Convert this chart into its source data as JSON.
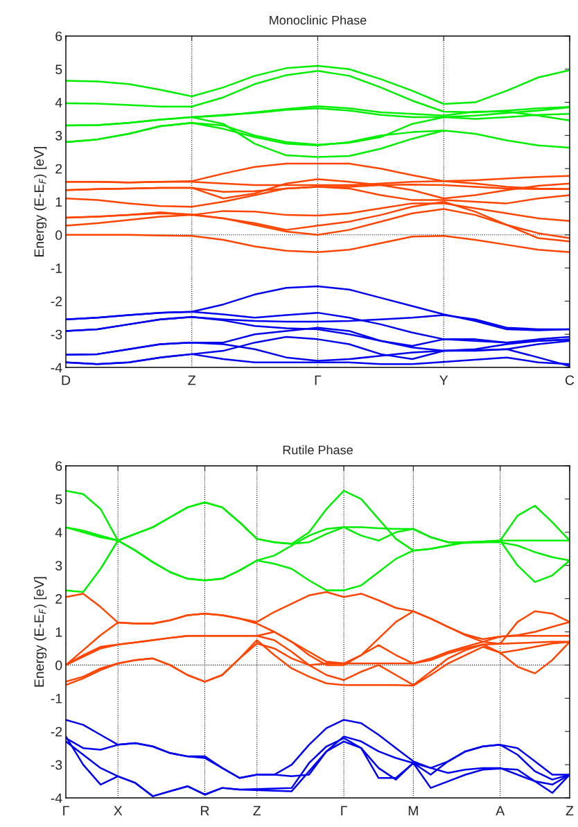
{
  "chart_data": [
    {
      "type": "line",
      "title": "Monoclinic Phase",
      "ylabel": "Energy (E-E$_{F}$) [eV]",
      "categories": [
        "D",
        null,
        null,
        null,
        "Z",
        null,
        null,
        null,
        "Γ",
        null,
        null,
        null,
        "Y",
        null,
        null,
        null,
        "C"
      ],
      "ylim": [
        -4,
        6
      ],
      "yticks": [
        -4,
        -3,
        -2,
        -1,
        0,
        1,
        2,
        3,
        4,
        5,
        6
      ],
      "grid": "x",
      "marker": "none",
      "line_style": "solid",
      "ref_lines": [
        {
          "axis": "y",
          "value": 0,
          "color": "#000000",
          "line_style": "dotted"
        }
      ],
      "series": [
        {
          "color": "#00ee00",
          "values": [
            4.65,
            4.63,
            4.55,
            4.38,
            4.18,
            4.45,
            4.8,
            5.03,
            5.1,
            5.0,
            4.7,
            4.35,
            3.95,
            4.0,
            4.35,
            4.75,
            4.97
          ]
        },
        {
          "color": "#00ee00",
          "values": [
            3.97,
            3.96,
            3.92,
            3.87,
            3.87,
            4.15,
            4.55,
            4.82,
            4.95,
            4.8,
            4.45,
            4.05,
            3.72,
            3.7,
            3.75,
            3.82,
            3.86
          ]
        },
        {
          "color": "#00ee00",
          "values": [
            3.3,
            3.31,
            3.38,
            3.48,
            3.55,
            3.6,
            3.7,
            3.8,
            3.88,
            3.82,
            3.7,
            3.65,
            3.6,
            3.72,
            3.72,
            3.6,
            3.45
          ]
        },
        {
          "color": "#00ee00",
          "values": [
            3.3,
            3.31,
            3.38,
            3.48,
            3.55,
            3.62,
            3.68,
            3.77,
            3.82,
            3.75,
            3.62,
            3.55,
            3.55,
            3.5,
            3.55,
            3.62,
            3.65
          ]
        },
        {
          "color": "#00ee00",
          "values": [
            2.8,
            2.88,
            3.05,
            3.28,
            3.38,
            3.2,
            2.95,
            2.75,
            2.7,
            2.8,
            3.0,
            3.1,
            3.15,
            3.05,
            2.85,
            2.7,
            2.63
          ]
        },
        {
          "color": "#00ee00",
          "values": [
            2.8,
            2.88,
            3.05,
            3.28,
            3.38,
            3.3,
            3.0,
            2.8,
            2.72,
            2.78,
            2.95,
            3.35,
            3.55,
            3.6,
            3.68,
            3.75,
            3.85
          ]
        },
        {
          "color": "#00ee00",
          "values": [
            null,
            null,
            null,
            null,
            3.55,
            3.35,
            2.75,
            2.4,
            2.35,
            2.38,
            2.6,
            2.9,
            3.15,
            null,
            null,
            null,
            null
          ]
        },
        {
          "color": "#ff4500",
          "values": [
            1.6,
            1.6,
            1.58,
            1.6,
            1.62,
            1.85,
            2.05,
            2.15,
            2.15,
            2.15,
            2.0,
            1.8,
            1.62,
            1.65,
            1.7,
            1.75,
            1.78
          ]
        },
        {
          "color": "#ff4500",
          "values": [
            1.6,
            1.6,
            1.58,
            1.6,
            1.6,
            1.55,
            1.5,
            1.5,
            1.5,
            1.5,
            1.55,
            1.6,
            1.62,
            1.55,
            1.45,
            1.4,
            1.38
          ]
        },
        {
          "color": "#ff4500",
          "values": [
            1.35,
            1.38,
            1.4,
            1.42,
            1.42,
            1.3,
            1.32,
            1.4,
            1.45,
            1.45,
            1.5,
            1.52,
            1.5,
            1.45,
            1.4,
            1.38,
            1.38
          ]
        },
        {
          "color": "#ff4500",
          "values": [
            1.35,
            1.38,
            1.4,
            1.42,
            1.42,
            1.1,
            1.25,
            1.55,
            1.68,
            1.6,
            1.5,
            1.35,
            1.1,
            1.2,
            1.35,
            1.48,
            1.55
          ]
        },
        {
          "color": "#ff4500",
          "values": [
            1.1,
            1.05,
            0.95,
            0.87,
            0.85,
            1.0,
            1.2,
            1.4,
            1.45,
            1.4,
            1.2,
            1.05,
            1.05,
            1.0,
            0.95,
            1.1,
            1.2
          ]
        },
        {
          "color": "#ff4500",
          "values": [
            0.52,
            0.55,
            0.6,
            0.68,
            0.6,
            0.72,
            0.7,
            0.6,
            0.58,
            0.65,
            0.8,
            0.95,
            0.95,
            0.8,
            0.65,
            0.5,
            0.42
          ]
        },
        {
          "color": "#ff4500",
          "values": [
            0.28,
            0.35,
            0.45,
            0.55,
            0.6,
            0.5,
            0.35,
            0.15,
            0.28,
            0.4,
            0.6,
            0.85,
            1.0,
            0.7,
            0.3,
            -0.1,
            -0.2
          ]
        },
        {
          "color": "#ff4500",
          "values": [
            0.52,
            0.55,
            0.6,
            0.65,
            0.62,
            0.5,
            0.3,
            0.1,
            0.0,
            0.15,
            0.4,
            0.65,
            0.78,
            0.6,
            0.3,
            0.05,
            -0.1
          ]
        },
        {
          "color": "#ff4500",
          "values": [
            0.0,
            0.0,
            0.0,
            -0.02,
            -0.03,
            -0.15,
            -0.35,
            -0.48,
            -0.52,
            -0.45,
            -0.25,
            -0.05,
            -0.03,
            -0.15,
            -0.3,
            -0.45,
            -0.52
          ]
        },
        {
          "color": "#0000ee",
          "values": [
            -2.55,
            -2.5,
            -2.42,
            -2.35,
            -2.32,
            -2.1,
            -1.8,
            -1.6,
            -1.55,
            -1.65,
            -1.9,
            -2.15,
            -2.4,
            -2.6,
            -2.85,
            -2.88,
            -2.85
          ]
        },
        {
          "color": "#0000ee",
          "values": [
            -2.55,
            -2.5,
            -2.42,
            -2.35,
            -2.32,
            -2.4,
            -2.5,
            -2.42,
            -2.35,
            -2.5,
            -2.7,
            -2.95,
            -3.15,
            -3.15,
            -3.25,
            -3.15,
            -3.08
          ]
        },
        {
          "color": "#0000ee",
          "values": [
            -2.9,
            -2.85,
            -2.7,
            -2.55,
            -2.48,
            -2.55,
            -2.6,
            -2.62,
            -2.62,
            -2.6,
            -2.55,
            -2.5,
            -2.42,
            -2.55,
            -2.8,
            -2.85,
            -2.85
          ]
        },
        {
          "color": "#0000ee",
          "values": [
            -2.9,
            -2.85,
            -2.7,
            -2.55,
            -2.48,
            -2.58,
            -2.75,
            -2.82,
            -2.85,
            -3.0,
            -3.2,
            -3.4,
            -3.5,
            -3.45,
            -3.3,
            -3.2,
            -3.16
          ]
        },
        {
          "color": "#0000ee",
          "values": [
            -3.62,
            -3.6,
            -3.45,
            -3.3,
            -3.25,
            -3.25,
            -3.0,
            -2.9,
            -2.8,
            -2.9,
            -3.2,
            -3.35,
            -3.15,
            -3.2,
            -3.25,
            -3.2,
            -3.16
          ]
        },
        {
          "color": "#0000ee",
          "values": [
            -3.62,
            -3.6,
            -3.45,
            -3.3,
            -3.25,
            -3.3,
            -3.45,
            -3.7,
            -3.8,
            -3.75,
            -3.65,
            -3.55,
            -3.5,
            -3.48,
            -3.45,
            -3.7,
            -3.96
          ]
        },
        {
          "color": "#0000ee",
          "values": [
            -3.85,
            -3.9,
            -3.85,
            -3.7,
            -3.6,
            -3.5,
            -3.25,
            -3.08,
            -3.15,
            -3.3,
            -3.6,
            -3.75,
            -3.5,
            -3.5,
            -3.45,
            -3.3,
            -3.2
          ]
        },
        {
          "color": "#0000ee",
          "values": [
            -3.85,
            -3.9,
            -3.85,
            -3.7,
            -3.6,
            -3.75,
            -3.85,
            -3.85,
            -3.85,
            -3.85,
            -3.9,
            -3.9,
            null,
            null,
            -3.7,
            -3.85,
            -3.9
          ]
        }
      ]
    },
    {
      "type": "line",
      "title": "Rutile Phase",
      "ylabel": "Energy (E-E$_{F}$) [eV]",
      "categories": [
        "Γ",
        null,
        null,
        "X",
        null,
        null,
        null,
        null,
        "R",
        null,
        null,
        "Z",
        null,
        null,
        null,
        null,
        "Γ",
        null,
        null,
        null,
        "M",
        null,
        null,
        null,
        null,
        "A",
        null,
        null,
        null,
        "Z"
      ],
      "ylim": [
        -4,
        6
      ],
      "yticks": [
        -4,
        -3,
        -2,
        -1,
        0,
        1,
        2,
        3,
        4,
        5,
        6
      ],
      "grid": "x",
      "marker": "none",
      "line_style": "solid",
      "ref_lines": [
        {
          "axis": "y",
          "value": 0,
          "color": "#000000",
          "line_style": "dotted"
        }
      ],
      "series": [
        {
          "color": "#00ee00",
          "values": [
            5.25,
            5.15,
            4.7,
            3.75,
            3.95,
            4.15,
            4.45,
            4.75,
            4.9,
            4.75,
            4.3,
            3.8,
            3.7,
            3.65,
            4.0,
            4.7,
            5.25,
            5.0,
            4.4,
            3.8,
            3.45,
            3.5,
            3.6,
            3.7,
            3.72,
            3.75,
            4.5,
            4.8,
            4.3,
            3.75
          ]
        },
        {
          "color": "#00ee00",
          "values": [
            4.15,
            4.05,
            3.9,
            3.75,
            3.45,
            3.1,
            2.8,
            2.6,
            2.55,
            2.6,
            2.85,
            3.15,
            3.3,
            3.6,
            3.9,
            4.1,
            4.15,
            4.15,
            4.12,
            4.1,
            4.1,
            3.85,
            3.7,
            3.7,
            3.72,
            3.75,
            3.75,
            3.75,
            3.75,
            3.75
          ]
        },
        {
          "color": "#00ee00",
          "values": [
            4.15,
            4.0,
            3.85,
            3.75,
            3.45,
            3.1,
            2.8,
            2.6,
            2.55,
            2.6,
            2.85,
            3.15,
            3.05,
            2.9,
            2.55,
            2.25,
            2.25,
            2.4,
            2.8,
            3.2,
            3.45,
            3.5,
            3.6,
            3.7,
            3.7,
            3.7,
            3.6,
            3.4,
            3.25,
            3.15
          ]
        },
        {
          "color": "#00ee00",
          "values": [
            2.25,
            2.2,
            2.9,
            3.75,
            3.95,
            4.15,
            4.45,
            4.75,
            4.9,
            4.75,
            4.3,
            3.8,
            3.7,
            3.65,
            3.7,
            3.95,
            4.15,
            3.9,
            3.75,
            4.0,
            4.1,
            3.85,
            3.7,
            3.68,
            3.7,
            3.75,
            3.0,
            2.5,
            2.7,
            3.15
          ]
        },
        {
          "color": "#ff4500",
          "values": [
            2.05,
            2.15,
            1.75,
            1.28,
            1.25,
            1.25,
            1.35,
            1.5,
            1.55,
            1.5,
            1.4,
            1.3,
            1.6,
            1.85,
            2.1,
            2.2,
            2.05,
            2.15,
            1.95,
            1.72,
            1.62,
            1.4,
            1.15,
            0.9,
            0.7,
            0.64,
            1.3,
            1.62,
            1.55,
            1.3
          ]
        },
        {
          "color": "#ff4500",
          "values": [
            0.0,
            0.45,
            0.9,
            1.28,
            1.25,
            1.25,
            1.35,
            1.5,
            1.55,
            1.5,
            1.4,
            1.25,
            1.0,
            0.7,
            0.4,
            0.1,
            0.05,
            0.3,
            0.8,
            1.3,
            1.62,
            1.4,
            1.15,
            0.92,
            0.78,
            0.86,
            0.9,
            1.0,
            1.15,
            1.3
          ]
        },
        {
          "color": "#ff4500",
          "values": [
            0.0,
            0.3,
            0.55,
            0.62,
            0.68,
            0.75,
            0.82,
            0.88,
            0.88,
            0.88,
            0.88,
            0.88,
            1.0,
            0.7,
            0.3,
            0.0,
            0.0,
            0.3,
            0.6,
            0.3,
            0.05,
            0.2,
            0.4,
            0.55,
            0.7,
            0.86,
            0.88,
            0.88,
            0.88,
            0.88
          ]
        },
        {
          "color": "#ff4500",
          "values": [
            0.0,
            0.25,
            0.5,
            0.62,
            0.68,
            0.75,
            0.82,
            0.88,
            0.88,
            0.88,
            0.88,
            0.88,
            0.75,
            0.4,
            0.0,
            -0.3,
            -0.45,
            -0.2,
            0.0,
            -0.3,
            -0.6,
            -0.2,
            0.2,
            0.45,
            0.62,
            0.64,
            0.66,
            0.68,
            0.7,
            0.7
          ]
        },
        {
          "color": "#ff4500",
          "values": [
            -0.5,
            -0.35,
            -0.1,
            0.05,
            0.15,
            0.2,
            0.0,
            -0.3,
            -0.5,
            -0.3,
            0.2,
            0.65,
            0.5,
            0.2,
            0.0,
            0.05,
            0.05,
            0.05,
            0.05,
            0.05,
            0.05,
            0.15,
            0.35,
            0.5,
            0.62,
            0.37,
            0.45,
            0.55,
            0.65,
            0.7
          ]
        },
        {
          "color": "#ff4500",
          "values": [
            -0.6,
            -0.4,
            -0.15,
            0.05,
            0.15,
            0.2,
            0.0,
            -0.3,
            -0.5,
            -0.3,
            0.2,
            0.75,
            0.3,
            -0.1,
            -0.35,
            -0.55,
            -0.6,
            -0.6,
            -0.6,
            -0.6,
            -0.62,
            -0.3,
            0.05,
            0.3,
            0.55,
            0.37,
            -0.05,
            -0.25,
            0.15,
            0.7
          ]
        },
        {
          "color": "#0000ee",
          "values": [
            -1.65,
            -1.8,
            -2.1,
            -2.4,
            -2.35,
            -2.45,
            -2.65,
            -2.75,
            -2.75,
            -3.1,
            -3.4,
            -3.3,
            -3.3,
            -3.0,
            -2.4,
            -1.9,
            -1.65,
            -1.75,
            -2.1,
            -2.5,
            -2.9,
            -3.1,
            -2.9,
            -2.6,
            -2.45,
            -2.4,
            -2.5,
            -2.9,
            -3.3,
            -3.3
          ]
        },
        {
          "color": "#0000ee",
          "values": [
            -2.2,
            -2.5,
            -2.55,
            -2.4,
            -2.35,
            -2.45,
            -2.65,
            -2.75,
            -2.8,
            -3.1,
            -3.4,
            -3.3,
            -3.3,
            -3.35,
            -3.3,
            -2.6,
            -2.15,
            -2.3,
            -2.6,
            -2.8,
            -2.95,
            -3.3,
            -2.9,
            -2.6,
            -2.45,
            -2.4,
            -2.7,
            -3.2,
            -3.45,
            -3.3
          ]
        },
        {
          "color": "#0000ee",
          "values": [
            -2.3,
            -2.7,
            -3.1,
            -3.35,
            -3.55,
            -3.95,
            -3.8,
            -3.65,
            -3.9,
            -3.7,
            -3.75,
            null,
            null,
            -3.8,
            -3.2,
            -2.6,
            -2.3,
            -2.5,
            -3.1,
            -3.45,
            -2.95,
            -3.1,
            -3.25,
            -3.15,
            -3.1,
            -3.1,
            -3.3,
            -3.5,
            -3.6,
            -3.3
          ]
        },
        {
          "color": "#0000ee",
          "values": [
            -2.15,
            -3.0,
            -3.6,
            -3.35,
            -3.55,
            -3.95,
            -3.8,
            -3.65,
            -3.9,
            -3.7,
            -3.75,
            null,
            null,
            -3.7,
            -2.95,
            -2.45,
            -2.2,
            -2.5,
            -3.4,
            -3.4,
            -2.95,
            -3.7,
            -3.5,
            -3.3,
            -3.15,
            -3.12,
            -3.15,
            -3.5,
            -3.85,
            -3.3
          ]
        }
      ]
    }
  ]
}
